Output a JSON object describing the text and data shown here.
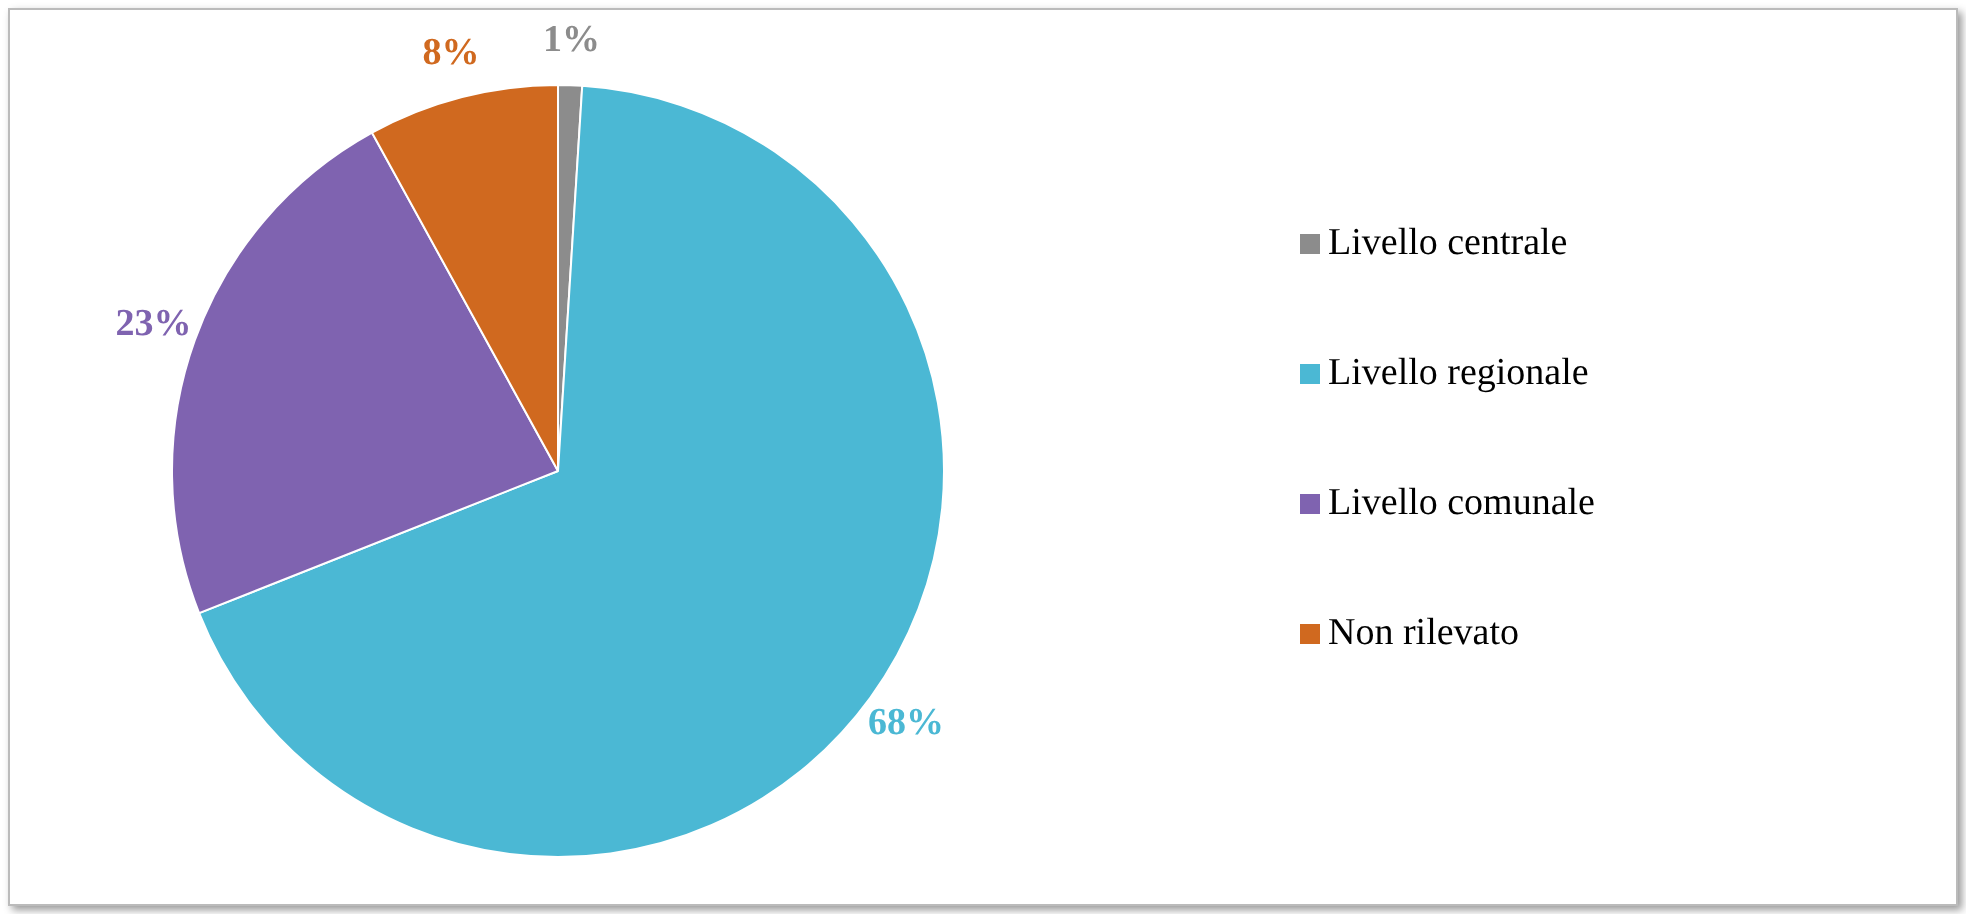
{
  "chart_data": {
    "type": "pie",
    "categories": [
      "Livello centrale",
      "Livello regionale",
      "Livello comunale",
      "Non rilevato"
    ],
    "values": [
      1,
      68,
      23,
      8
    ],
    "colors": [
      "#8c8c8c",
      "#4bb8d4",
      "#7f63b0",
      "#d0691f"
    ],
    "value_labels": [
      "1%",
      "68%",
      "23%",
      "8%"
    ],
    "legend": "right"
  }
}
